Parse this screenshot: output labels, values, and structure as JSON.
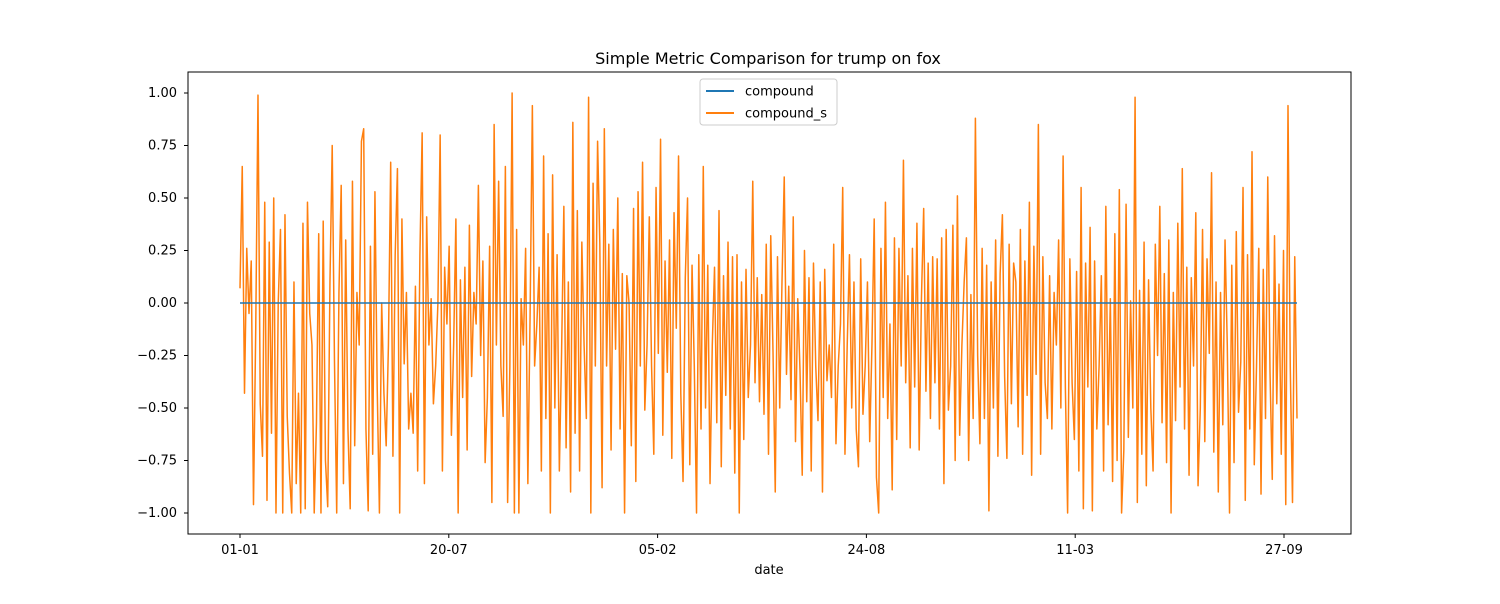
{
  "chart_data": {
    "type": "line",
    "title": "Simple Metric Comparison for trump on fox",
    "xlabel": "date",
    "ylabel": "",
    "x_ticks": [
      "01-01",
      "20-07",
      "05-02",
      "24-08",
      "11-03",
      "27-09"
    ],
    "y_ticks": [
      "1.00",
      "0.75",
      "0.50",
      "0.25",
      "0.00",
      "−0.25",
      "−0.50",
      "−0.75",
      "−1.00"
    ],
    "ylim": [
      -1.1,
      1.1
    ],
    "grid": false,
    "legend_position": "top-center",
    "series": [
      {
        "name": "compound",
        "color": "#1f77b4",
        "values": [
          0,
          0
        ]
      },
      {
        "name": "compound_s",
        "color": "#ff7f0e",
        "values": [
          0.07,
          0.65,
          -0.43,
          0.26,
          -0.05,
          0.2,
          -0.96,
          -0.12,
          0.99,
          -0.48,
          -0.73,
          0.48,
          -0.94,
          0.29,
          -0.62,
          0.5,
          -1.0,
          0.0,
          0.35,
          -1.0,
          0.42,
          -0.54,
          -0.81,
          -1.0,
          0.1,
          -0.86,
          -0.43,
          -1.0,
          0.38,
          -0.98,
          0.48,
          -0.05,
          -0.2,
          -1.0,
          -0.57,
          0.33,
          -1.0,
          0.39,
          -0.75,
          -0.97,
          0.1,
          0.75,
          -0.27,
          -1.0,
          0.05,
          0.56,
          -0.86,
          0.3,
          -0.6,
          -0.98,
          0.58,
          -0.68,
          0.05,
          -0.2,
          0.77,
          0.83,
          -0.6,
          -0.99,
          0.27,
          -0.72,
          0.53,
          -0.4,
          -1.0,
          0.0,
          -0.43,
          -0.68,
          -0.2,
          0.67,
          -0.73,
          0.23,
          0.64,
          -1.0,
          0.4,
          -0.29,
          0.05,
          -0.6,
          -0.43,
          -0.62,
          0.08,
          -0.8,
          0.23,
          0.81,
          -0.86,
          0.41,
          -0.2,
          0.02,
          -0.48,
          -0.3,
          0.0,
          0.8,
          -0.8,
          0.17,
          -0.1,
          0.27,
          -0.63,
          -0.2,
          0.4,
          -1.0,
          0.11,
          -0.45,
          0.17,
          -0.7,
          0.37,
          -0.35,
          0.05,
          -0.1,
          0.56,
          -0.25,
          0.2,
          -0.76,
          -0.45,
          0.27,
          -0.95,
          0.85,
          -0.2,
          0.58,
          -0.3,
          -0.54,
          0.65,
          -0.95,
          -0.3,
          1.0,
          -1.0,
          0.35,
          -1.0,
          0.02,
          -0.2,
          0.26,
          -0.86,
          -0.05,
          0.94,
          -0.3,
          -0.1,
          0.17,
          -0.8,
          0.7,
          -0.55,
          0.33,
          -1.0,
          0.61,
          -0.5,
          0.23,
          -0.8,
          -0.23,
          0.46,
          -0.69,
          0.1,
          -0.9,
          0.86,
          -0.62,
          0.44,
          -0.8,
          0.29,
          -0.2,
          -0.55,
          0.98,
          -1.0,
          0.57,
          -0.3,
          0.77,
          0.28,
          -0.88,
          0.83,
          -0.3,
          0.28,
          -0.7,
          0.35,
          -0.22,
          0.5,
          -0.6,
          0.14,
          -1.0,
          0.13,
          0.0,
          -0.68,
          0.45,
          -0.85,
          0.53,
          -0.3,
          0.67,
          -0.51,
          -0.2,
          0.41,
          -0.3,
          -0.72,
          0.55,
          -0.24,
          0.78,
          -0.63,
          0.2,
          -0.33,
          0.3,
          -0.74,
          0.43,
          -0.12,
          0.7,
          -0.43,
          -0.85,
          0.12,
          0.5,
          -0.77,
          0.18,
          -0.3,
          -1.0,
          0.23,
          -0.6,
          0.65,
          -0.5,
          0.18,
          -0.86,
          -0.2,
          0.17,
          -0.57,
          0.44,
          -0.78,
          0.13,
          -0.44,
          0.29,
          -0.6,
          0.22,
          -0.81,
          0.23,
          -1.0,
          0.1,
          -0.65,
          0.16,
          -0.45,
          -0.2,
          0.58,
          -0.38,
          0.12,
          -0.47,
          0.04,
          -0.53,
          0.28,
          -0.72,
          0.32,
          -0.23,
          -0.9,
          0.22,
          -0.5,
          0.1,
          0.6,
          -0.34,
          0.08,
          -0.46,
          0.41,
          -0.66,
          0.02,
          -0.32,
          -0.82,
          0.25,
          -0.47,
          0.12,
          -0.8,
          0.19,
          -0.3,
          -0.56,
          0.1,
          -0.9,
          0.16,
          -0.37,
          -0.2,
          -0.45,
          0.28,
          -0.67,
          -0.3,
          -0.1,
          0.55,
          -0.72,
          -0.2,
          0.23,
          -0.5,
          0.1,
          -0.6,
          -0.78,
          0.21,
          -0.53,
          -0.3,
          0.1,
          -0.66,
          -0.2,
          0.4,
          -0.83,
          -1.0,
          0.26,
          -0.45,
          0.48,
          -0.55,
          -0.1,
          -0.89,
          0.31,
          -0.65,
          0.26,
          -0.3,
          0.68,
          -0.38,
          0.13,
          -0.69,
          0.26,
          -0.4,
          0.38,
          -0.7,
          0.02,
          0.45,
          -0.42,
          0.19,
          -0.55,
          0.22,
          -0.38,
          0.21,
          -0.6,
          0.31,
          -0.86,
          0.35,
          -0.51,
          -0.3,
          0.37,
          -0.75,
          0.51,
          -0.63,
          -0.2,
          0.1,
          0.31,
          -0.75,
          0.04,
          -0.55,
          0.88,
          -0.25,
          -0.67,
          0.26,
          -0.55,
          0.18,
          -0.99,
          0.1,
          -0.5,
          0.3,
          -0.73,
          0.14,
          0.42,
          -0.35,
          -0.74,
          0.28,
          -0.48,
          0.19,
          0.1,
          -0.59,
          0.35,
          -0.72,
          0.2,
          -0.44,
          0.48,
          -0.82,
          0.27,
          -0.34,
          0.85,
          -0.72,
          0.22,
          -0.38,
          -0.55,
          0.13,
          -0.6,
          0.05,
          -0.2,
          0.3,
          -0.5,
          0.7,
          -0.4,
          -1.0,
          0.21,
          -0.38,
          -0.65,
          0.15,
          -0.8,
          0.55,
          -0.98,
          0.19,
          -0.4,
          0.36,
          -0.99,
          0.2,
          -0.6,
          -0.3,
          0.13,
          -0.8,
          0.46,
          -0.58,
          0.02,
          -0.85,
          0.33,
          -0.75,
          0.54,
          -1.0,
          -0.7,
          0.47,
          -0.64,
          0.01,
          -0.5,
          0.98,
          -0.95,
          0.06,
          -0.72,
          0.29,
          -0.87,
          0.11,
          -0.5,
          -0.8,
          0.28,
          -0.25,
          0.46,
          -0.57,
          0.14,
          -0.76,
          0.3,
          -1.0,
          0.05,
          -0.56,
          0.38,
          -0.4,
          0.64,
          -0.6,
          0.17,
          -0.82,
          0.12,
          -0.3,
          0.43,
          -0.87,
          -0.5,
          0.35,
          -0.66,
          0.21,
          -0.24,
          0.62,
          -0.71,
          0.1,
          -0.9,
          0.05,
          -0.58,
          0.3,
          -0.2,
          -1.0,
          0.18,
          -0.76,
          0.34,
          -0.52,
          -0.28,
          0.55,
          -0.94,
          0.23,
          -0.6,
          0.72,
          -0.77,
          -0.3,
          0.26,
          -0.91,
          0.16,
          -0.55,
          0.6,
          -0.33,
          -0.84,
          0.32,
          -0.48,
          0.09,
          -0.72,
          0.25,
          -0.96,
          0.94,
          -0.3,
          -0.95,
          0.22,
          -0.55
        ]
      }
    ]
  }
}
